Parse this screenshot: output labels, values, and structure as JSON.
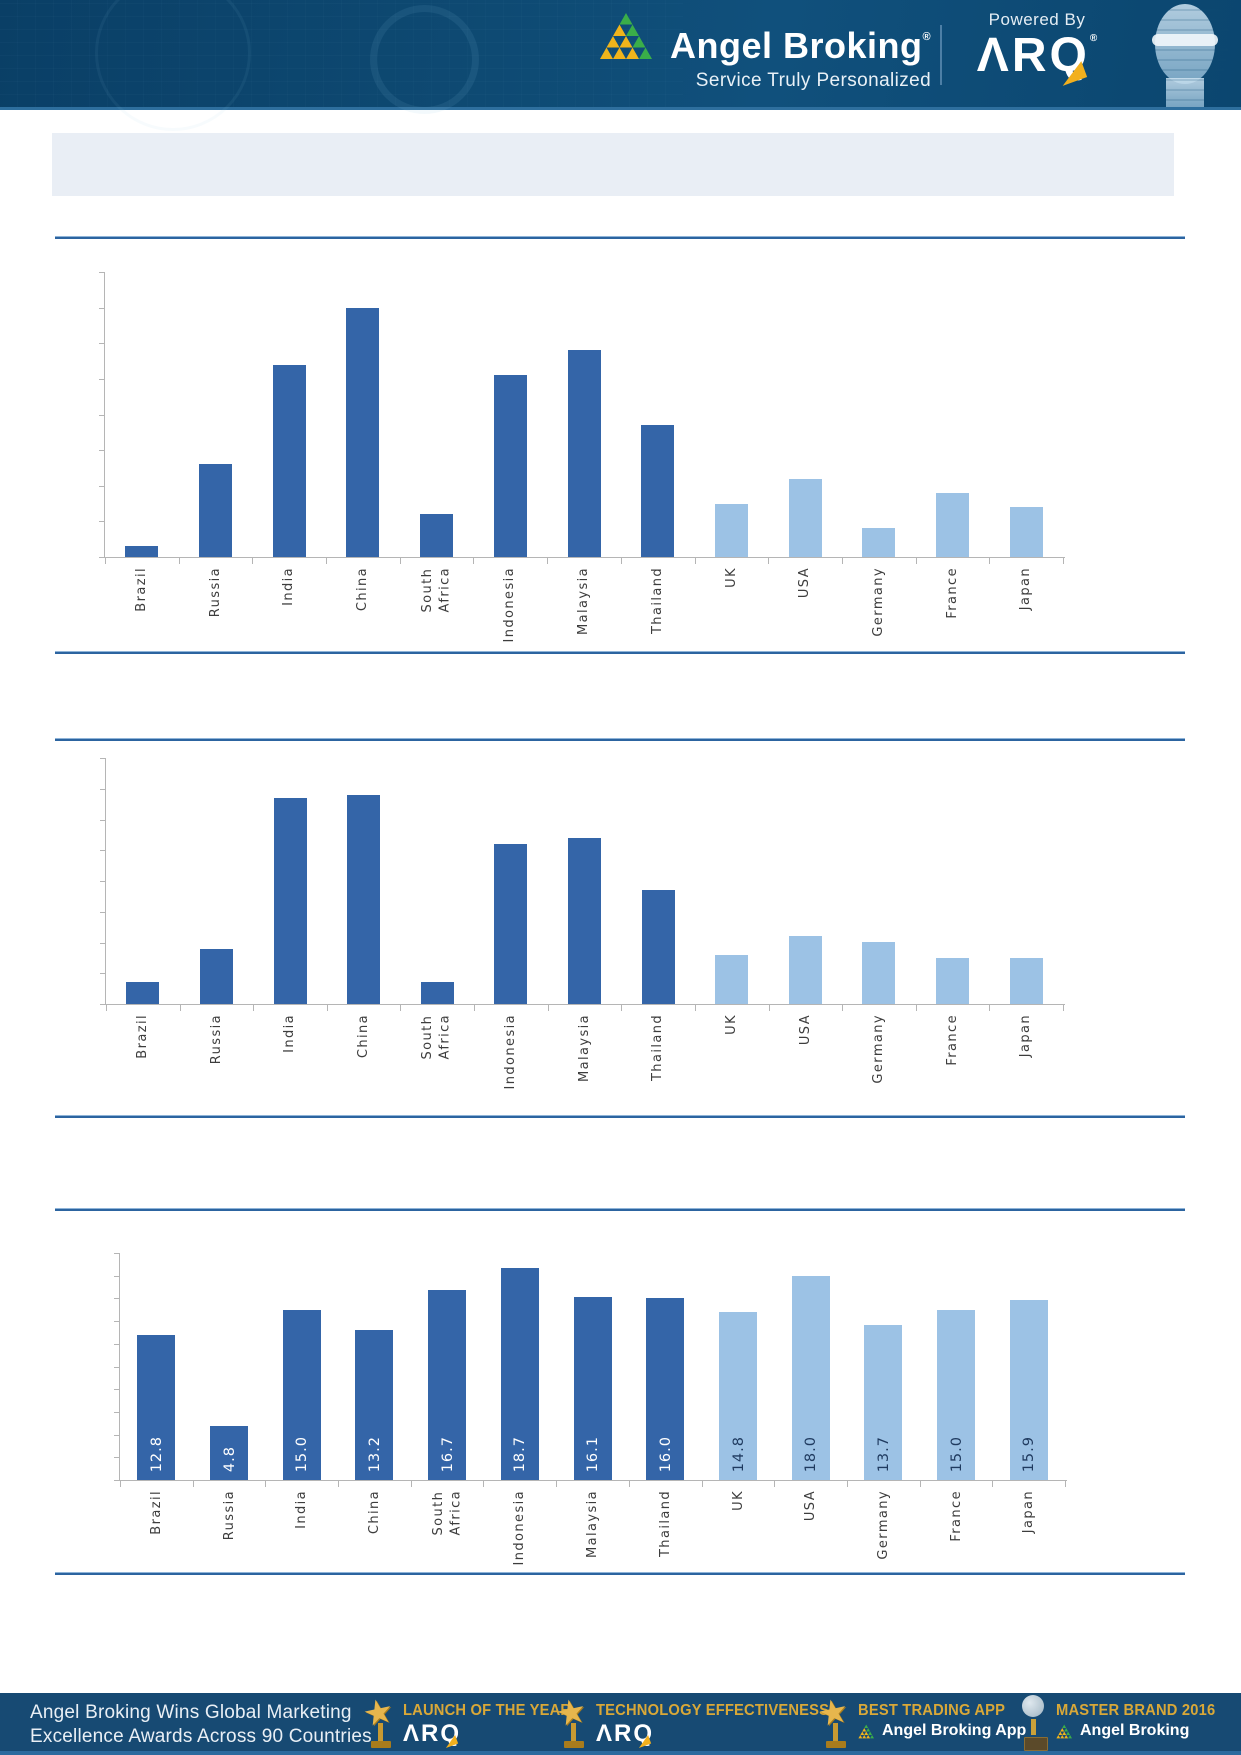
{
  "header": {
    "brand": {
      "name": "Angel Broking",
      "registered": "®",
      "tagline": "Service Truly Personalized"
    },
    "powered_by": {
      "label": "Powered By",
      "product": "ΛRQ",
      "registered": "®"
    }
  },
  "palette": {
    "emerging_bar": "#3465a8",
    "developed_bar": "#9cc2e5",
    "value_label_on_dark": "#ffffff",
    "value_label_on_light": "#1f3a5f",
    "rule_blue": "#2c64a0",
    "header_navy": "#0e4a73",
    "footer_navy": "#174a73",
    "gold": "#d9a838",
    "logo_gold": "#f0b41b",
    "logo_green": "#3aae49"
  },
  "chart_data": [
    {
      "type": "bar",
      "categories": [
        "Brazil",
        "Russia",
        "India",
        "China",
        "South Africa",
        "Indonesia",
        "Malaysia",
        "Thailand",
        "UK",
        "USA",
        "Germany",
        "France",
        "Japan"
      ],
      "values": [
        0.3,
        2.6,
        5.4,
        7.0,
        1.2,
        5.1,
        5.8,
        3.7,
        1.5,
        2.2,
        0.8,
        1.8,
        1.4
      ],
      "ylim": [
        0,
        8
      ],
      "ytick_step": 1,
      "y_tick_labels_visible": false,
      "data_labels": false,
      "emerging_count": 8,
      "legend": "none",
      "grid": false
    },
    {
      "type": "bar",
      "categories": [
        "Brazil",
        "Russia",
        "India",
        "China",
        "South Africa",
        "Indonesia",
        "Malaysia",
        "Thailand",
        "UK",
        "USA",
        "Germany",
        "France",
        "Japan"
      ],
      "values": [
        0.7,
        1.8,
        6.7,
        6.8,
        0.7,
        5.2,
        5.4,
        3.7,
        1.6,
        2.2,
        2.0,
        1.5,
        1.5
      ],
      "ylim": [
        0,
        8
      ],
      "ytick_step": 1,
      "y_tick_labels_visible": false,
      "data_labels": false,
      "emerging_count": 8,
      "legend": "none",
      "grid": false
    },
    {
      "type": "bar",
      "categories": [
        "Brazil",
        "Russia",
        "India",
        "China",
        "South Africa",
        "Indonesia",
        "Malaysia",
        "Thailand",
        "UK",
        "USA",
        "Germany",
        "France",
        "Japan"
      ],
      "values": [
        12.8,
        4.8,
        15.0,
        13.2,
        16.7,
        18.7,
        16.1,
        16.0,
        14.8,
        18.0,
        13.7,
        15.0,
        15.9
      ],
      "data_label_texts": [
        "12.8",
        "4.8",
        "15.0",
        "13.2",
        "16.7",
        "18.7",
        "16.1",
        "16.0",
        "14.8",
        "18.0",
        "13.7",
        "15.0",
        "15.9"
      ],
      "ylim": [
        0,
        20
      ],
      "ytick_step": 2,
      "y_tick_labels_visible": false,
      "data_labels": true,
      "emerging_count": 8,
      "legend": "none",
      "grid": false
    }
  ],
  "footer": {
    "headline_line1": "Angel Broking Wins Global Marketing",
    "headline_line2": "Excellence Awards Across 90 Countries",
    "awards": [
      {
        "title": "LAUNCH OF THE YEAR",
        "subtitle": "ΛRQ",
        "icon": "star-trophy"
      },
      {
        "title": "TECHNOLOGY EFFECTIVENESS",
        "subtitle": "ΛRQ",
        "icon": "star-trophy"
      },
      {
        "title": "BEST TRADING APP",
        "subtitle": "Angel Broking App",
        "icon": "star-trophy",
        "logo": "angel-pyramid"
      },
      {
        "title": "MASTER BRAND 2016",
        "subtitle": "Angel Broking",
        "icon": "globe-trophy",
        "logo": "angel-pyramid"
      }
    ]
  }
}
